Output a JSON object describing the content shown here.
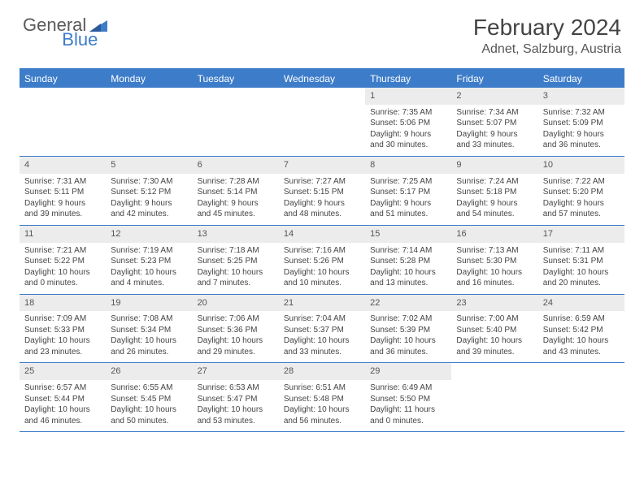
{
  "brand": {
    "part1": "General",
    "part2": "Blue"
  },
  "title": "February 2024",
  "location": "Adnet, Salzburg, Austria",
  "colors": {
    "header_bg": "#3d7cc9",
    "daynum_bg": "#ececec",
    "text": "#444444",
    "title_text": "#444444",
    "location_text": "#555555"
  },
  "day_names": [
    "Sunday",
    "Monday",
    "Tuesday",
    "Wednesday",
    "Thursday",
    "Friday",
    "Saturday"
  ],
  "weeks": [
    [
      {
        "n": "",
        "sr": "",
        "ss": "",
        "dl": ""
      },
      {
        "n": "",
        "sr": "",
        "ss": "",
        "dl": ""
      },
      {
        "n": "",
        "sr": "",
        "ss": "",
        "dl": ""
      },
      {
        "n": "",
        "sr": "",
        "ss": "",
        "dl": ""
      },
      {
        "n": "1",
        "sr": "7:35 AM",
        "ss": "5:06 PM",
        "dl": "9 hours and 30 minutes."
      },
      {
        "n": "2",
        "sr": "7:34 AM",
        "ss": "5:07 PM",
        "dl": "9 hours and 33 minutes."
      },
      {
        "n": "3",
        "sr": "7:32 AM",
        "ss": "5:09 PM",
        "dl": "9 hours and 36 minutes."
      }
    ],
    [
      {
        "n": "4",
        "sr": "7:31 AM",
        "ss": "5:11 PM",
        "dl": "9 hours and 39 minutes."
      },
      {
        "n": "5",
        "sr": "7:30 AM",
        "ss": "5:12 PM",
        "dl": "9 hours and 42 minutes."
      },
      {
        "n": "6",
        "sr": "7:28 AM",
        "ss": "5:14 PM",
        "dl": "9 hours and 45 minutes."
      },
      {
        "n": "7",
        "sr": "7:27 AM",
        "ss": "5:15 PM",
        "dl": "9 hours and 48 minutes."
      },
      {
        "n": "8",
        "sr": "7:25 AM",
        "ss": "5:17 PM",
        "dl": "9 hours and 51 minutes."
      },
      {
        "n": "9",
        "sr": "7:24 AM",
        "ss": "5:18 PM",
        "dl": "9 hours and 54 minutes."
      },
      {
        "n": "10",
        "sr": "7:22 AM",
        "ss": "5:20 PM",
        "dl": "9 hours and 57 minutes."
      }
    ],
    [
      {
        "n": "11",
        "sr": "7:21 AM",
        "ss": "5:22 PM",
        "dl": "10 hours and 0 minutes."
      },
      {
        "n": "12",
        "sr": "7:19 AM",
        "ss": "5:23 PM",
        "dl": "10 hours and 4 minutes."
      },
      {
        "n": "13",
        "sr": "7:18 AM",
        "ss": "5:25 PM",
        "dl": "10 hours and 7 minutes."
      },
      {
        "n": "14",
        "sr": "7:16 AM",
        "ss": "5:26 PM",
        "dl": "10 hours and 10 minutes."
      },
      {
        "n": "15",
        "sr": "7:14 AM",
        "ss": "5:28 PM",
        "dl": "10 hours and 13 minutes."
      },
      {
        "n": "16",
        "sr": "7:13 AM",
        "ss": "5:30 PM",
        "dl": "10 hours and 16 minutes."
      },
      {
        "n": "17",
        "sr": "7:11 AM",
        "ss": "5:31 PM",
        "dl": "10 hours and 20 minutes."
      }
    ],
    [
      {
        "n": "18",
        "sr": "7:09 AM",
        "ss": "5:33 PM",
        "dl": "10 hours and 23 minutes."
      },
      {
        "n": "19",
        "sr": "7:08 AM",
        "ss": "5:34 PM",
        "dl": "10 hours and 26 minutes."
      },
      {
        "n": "20",
        "sr": "7:06 AM",
        "ss": "5:36 PM",
        "dl": "10 hours and 29 minutes."
      },
      {
        "n": "21",
        "sr": "7:04 AM",
        "ss": "5:37 PM",
        "dl": "10 hours and 33 minutes."
      },
      {
        "n": "22",
        "sr": "7:02 AM",
        "ss": "5:39 PM",
        "dl": "10 hours and 36 minutes."
      },
      {
        "n": "23",
        "sr": "7:00 AM",
        "ss": "5:40 PM",
        "dl": "10 hours and 39 minutes."
      },
      {
        "n": "24",
        "sr": "6:59 AM",
        "ss": "5:42 PM",
        "dl": "10 hours and 43 minutes."
      }
    ],
    [
      {
        "n": "25",
        "sr": "6:57 AM",
        "ss": "5:44 PM",
        "dl": "10 hours and 46 minutes."
      },
      {
        "n": "26",
        "sr": "6:55 AM",
        "ss": "5:45 PM",
        "dl": "10 hours and 50 minutes."
      },
      {
        "n": "27",
        "sr": "6:53 AM",
        "ss": "5:47 PM",
        "dl": "10 hours and 53 minutes."
      },
      {
        "n": "28",
        "sr": "6:51 AM",
        "ss": "5:48 PM",
        "dl": "10 hours and 56 minutes."
      },
      {
        "n": "29",
        "sr": "6:49 AM",
        "ss": "5:50 PM",
        "dl": "11 hours and 0 minutes."
      },
      {
        "n": "",
        "sr": "",
        "ss": "",
        "dl": ""
      },
      {
        "n": "",
        "sr": "",
        "ss": "",
        "dl": ""
      }
    ]
  ],
  "labels": {
    "sunrise": "Sunrise:",
    "sunset": "Sunset:",
    "daylight": "Daylight:"
  }
}
